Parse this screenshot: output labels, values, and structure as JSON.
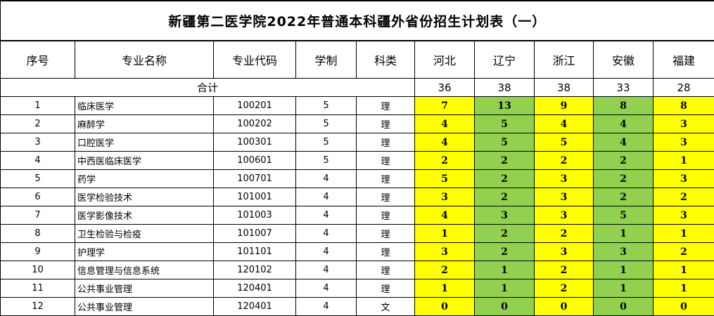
{
  "title": "新疆第二医学院2022年普通本科疆外省份招生计划表（一）",
  "headers": [
    "序号",
    "专业名称",
    "专业代码",
    "学制",
    "科类",
    "河北",
    "辽宁",
    "浙江",
    "安徽",
    "福建"
  ],
  "total_label": "合计",
  "totals": [
    "36",
    "38",
    "38",
    "33",
    "28"
  ],
  "colors": {
    "yellow": "#FFFF00",
    "green": "#92D050"
  },
  "province_fill": [
    "yellow",
    "green",
    "yellow",
    "green",
    "yellow"
  ],
  "rows": [
    {
      "no": "1",
      "name": "临床医学",
      "code": "100201",
      "years": "5",
      "type": "理",
      "values": [
        "7",
        "13",
        "9",
        "8",
        "8"
      ]
    },
    {
      "no": "2",
      "name": "麻醉学",
      "code": "100202",
      "years": "5",
      "type": "理",
      "values": [
        "4",
        "5",
        "4",
        "4",
        "3"
      ]
    },
    {
      "no": "3",
      "name": "口腔医学",
      "code": "100301",
      "years": "5",
      "type": "理",
      "values": [
        "4",
        "5",
        "5",
        "4",
        "3"
      ]
    },
    {
      "no": "4",
      "name": "中西医临床医学",
      "code": "100601",
      "years": "5",
      "type": "理",
      "values": [
        "2",
        "2",
        "2",
        "2",
        "1"
      ]
    },
    {
      "no": "5",
      "name": "药学",
      "code": "100701",
      "years": "4",
      "type": "理",
      "values": [
        "5",
        "2",
        "3",
        "2",
        "3"
      ]
    },
    {
      "no": "6",
      "name": "医学检验技术",
      "code": "101001",
      "years": "4",
      "type": "理",
      "values": [
        "3",
        "2",
        "3",
        "2",
        "2"
      ]
    },
    {
      "no": "7",
      "name": "医学影像技术",
      "code": "101003",
      "years": "4",
      "type": "理",
      "values": [
        "4",
        "3",
        "3",
        "5",
        "3"
      ]
    },
    {
      "no": "8",
      "name": "卫生检验与检疫",
      "code": "101007",
      "years": "4",
      "type": "理",
      "values": [
        "1",
        "2",
        "2",
        "1",
        "1"
      ]
    },
    {
      "no": "9",
      "name": "护理学",
      "code": "101101",
      "years": "4",
      "type": "理",
      "values": [
        "3",
        "2",
        "3",
        "3",
        "2"
      ]
    },
    {
      "no": "10",
      "name": "信息管理与信息系统",
      "code": "120102",
      "years": "4",
      "type": "理",
      "values": [
        "2",
        "1",
        "2",
        "1",
        "1"
      ]
    },
    {
      "no": "11",
      "name": "公共事业管理",
      "code": "120401",
      "years": "4",
      "type": "理",
      "values": [
        "1",
        "1",
        "2",
        "1",
        "1"
      ]
    },
    {
      "no": "12",
      "name": "公共事业管理",
      "code": "120401",
      "years": "4",
      "type": "文",
      "values": [
        "0",
        "0",
        "0",
        "0",
        "0"
      ]
    }
  ]
}
